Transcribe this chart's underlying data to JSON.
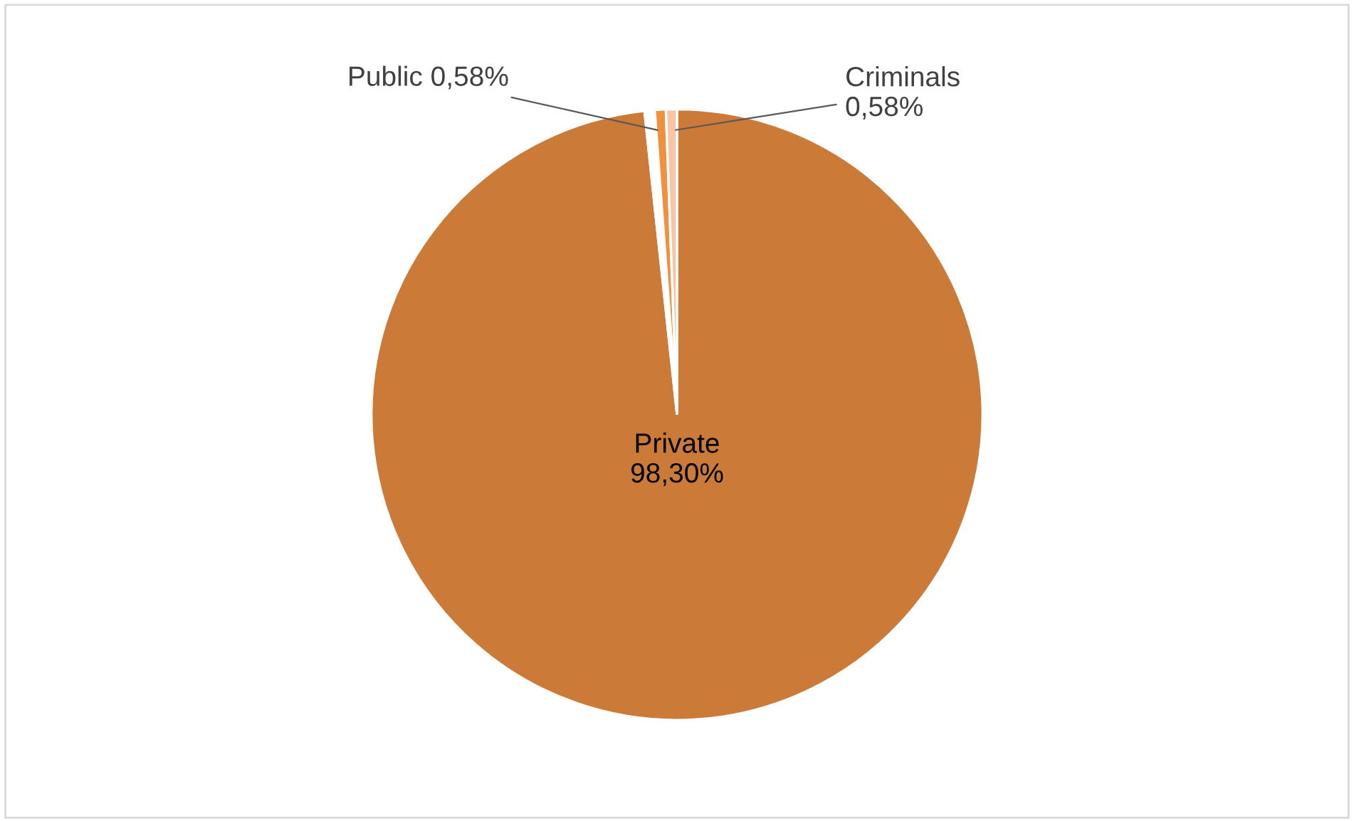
{
  "chart_data": {
    "type": "pie",
    "categories": [
      "Private",
      null,
      "Public",
      "Criminals"
    ],
    "values": [
      98.3,
      0.54,
      0.58,
      0.58
    ],
    "value_labels": [
      "98,30%",
      null,
      "0,58%",
      "0,58%"
    ],
    "colors": [
      "#cc7a38",
      "#ffffff",
      "#f0913f",
      "#f8c4a8"
    ],
    "legend": false
  }
}
